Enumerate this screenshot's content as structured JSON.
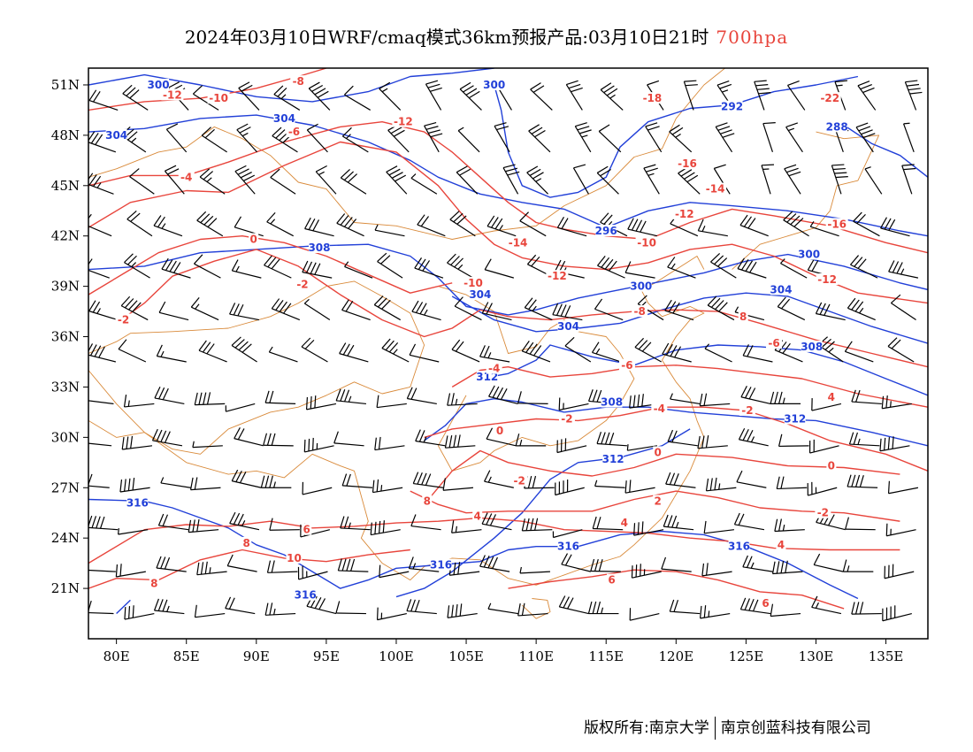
{
  "header": {
    "title": "2024年03月10日WRF/cmaq模式36km预报产品:03月10日21时",
    "level": "700hpa"
  },
  "colors": {
    "height_contour": "#2240d8",
    "temperature_contour": "#e8453c",
    "borders": "#d98a3a",
    "wind_barb": "#000000"
  },
  "axes": {
    "lon_range": [
      78,
      138
    ],
    "lat_range": [
      18,
      52
    ],
    "x_ticks": [
      "80E",
      "85E",
      "90E",
      "95E",
      "100E",
      "105E",
      "110E",
      "115E",
      "120E",
      "125E",
      "130E",
      "135E"
    ],
    "y_ticks": [
      "21N",
      "24N",
      "27N",
      "30N",
      "33N",
      "36N",
      "39N",
      "42N",
      "45N",
      "48N",
      "51N"
    ]
  },
  "height_labels": [
    {
      "text": "300",
      "lon": 83,
      "lat": 51
    },
    {
      "text": "304",
      "lon": 80,
      "lat": 48
    },
    {
      "text": "304",
      "lon": 92,
      "lat": 49
    },
    {
      "text": "300",
      "lon": 107,
      "lat": 51
    },
    {
      "text": "292",
      "lon": 124,
      "lat": 49.7
    },
    {
      "text": "288",
      "lon": 131.5,
      "lat": 48.5
    },
    {
      "text": "296",
      "lon": 115,
      "lat": 42.3
    },
    {
      "text": "308",
      "lon": 94.5,
      "lat": 41.3
    },
    {
      "text": "300",
      "lon": 129.5,
      "lat": 40.9
    },
    {
      "text": "300",
      "lon": 117.5,
      "lat": 39
    },
    {
      "text": "304",
      "lon": 127.5,
      "lat": 38.8
    },
    {
      "text": "304",
      "lon": 106,
      "lat": 38.5
    },
    {
      "text": "304",
      "lon": 112.3,
      "lat": 36.6
    },
    {
      "text": "308",
      "lon": 129.7,
      "lat": 35.4
    },
    {
      "text": "312",
      "lon": 106.5,
      "lat": 33.6
    },
    {
      "text": "308",
      "lon": 115.4,
      "lat": 32.1
    },
    {
      "text": "312",
      "lon": 128.5,
      "lat": 31.1
    },
    {
      "text": "312",
      "lon": 115.5,
      "lat": 28.7
    },
    {
      "text": "316",
      "lon": 81.5,
      "lat": 26.1
    },
    {
      "text": "316",
      "lon": 112.3,
      "lat": 23.5
    },
    {
      "text": "316",
      "lon": 124.5,
      "lat": 23.5
    },
    {
      "text": "316",
      "lon": 103.2,
      "lat": 22.4
    },
    {
      "text": "316",
      "lon": 93.5,
      "lat": 20.6
    }
  ],
  "temperature_labels": [
    {
      "text": "-8",
      "lon": 93,
      "lat": 51.2
    },
    {
      "text": "-12",
      "lon": 84,
      "lat": 50.4
    },
    {
      "text": "-10",
      "lon": 87.3,
      "lat": 50.2
    },
    {
      "text": "-12",
      "lon": 100.5,
      "lat": 48.8
    },
    {
      "text": "-6",
      "lon": 92.7,
      "lat": 48.2
    },
    {
      "text": "-18",
      "lon": 118.3,
      "lat": 50.2
    },
    {
      "text": "-22",
      "lon": 131,
      "lat": 50.2
    },
    {
      "text": "-16",
      "lon": 120.8,
      "lat": 46.3
    },
    {
      "text": "-14",
      "lon": 122.8,
      "lat": 44.8
    },
    {
      "text": "-12",
      "lon": 120.6,
      "lat": 43.3
    },
    {
      "text": "-16",
      "lon": 131.5,
      "lat": 42.7
    },
    {
      "text": "-4",
      "lon": 85,
      "lat": 45.5
    },
    {
      "text": "0",
      "lon": 89.8,
      "lat": 41.8
    },
    {
      "text": "-14",
      "lon": 108.7,
      "lat": 41.6
    },
    {
      "text": "-10",
      "lon": 117.9,
      "lat": 41.6
    },
    {
      "text": "-12",
      "lon": 111.5,
      "lat": 39.6
    },
    {
      "text": "-12",
      "lon": 130.8,
      "lat": 39.4
    },
    {
      "text": "-2",
      "lon": 93.3,
      "lat": 39.1
    },
    {
      "text": "-10",
      "lon": 105.5,
      "lat": 39.2
    },
    {
      "text": "-8",
      "lon": 117.4,
      "lat": 37.5
    },
    {
      "text": "8",
      "lon": 124.8,
      "lat": 37.2
    },
    {
      "text": "-2",
      "lon": 80.5,
      "lat": 37
    },
    {
      "text": "-6",
      "lon": 127,
      "lat": 35.6
    },
    {
      "text": "-4",
      "lon": 107,
      "lat": 34.1
    },
    {
      "text": "-6",
      "lon": 116.5,
      "lat": 34.3
    },
    {
      "text": "4",
      "lon": 131.1,
      "lat": 32.4
    },
    {
      "text": "-4",
      "lon": 118.8,
      "lat": 31.7
    },
    {
      "text": "-2",
      "lon": 125.1,
      "lat": 31.6
    },
    {
      "text": "-2",
      "lon": 112.2,
      "lat": 31.1
    },
    {
      "text": "0",
      "lon": 107.4,
      "lat": 30.4
    },
    {
      "text": "0",
      "lon": 118.7,
      "lat": 29.1
    },
    {
      "text": "0",
      "lon": 131.1,
      "lat": 28.3
    },
    {
      "text": "-2",
      "lon": 108.8,
      "lat": 27.4
    },
    {
      "text": "2",
      "lon": 118.7,
      "lat": 26.2
    },
    {
      "text": "-2",
      "lon": 130.5,
      "lat": 25.5
    },
    {
      "text": "8",
      "lon": 102.2,
      "lat": 26.2
    },
    {
      "text": "4",
      "lon": 105.8,
      "lat": 25.3
    },
    {
      "text": "4",
      "lon": 116.3,
      "lat": 24.9
    },
    {
      "text": "6",
      "lon": 93.6,
      "lat": 24.5
    },
    {
      "text": "8",
      "lon": 89.3,
      "lat": 23.7
    },
    {
      "text": "4",
      "lon": 127.5,
      "lat": 23.6
    },
    {
      "text": "10",
      "lon": 92.7,
      "lat": 22.8
    },
    {
      "text": "6",
      "lon": 115.4,
      "lat": 21.5
    },
    {
      "text": "8",
      "lon": 82.7,
      "lat": 21.3
    },
    {
      "text": "6",
      "lon": 126.4,
      "lat": 20.1
    }
  ],
  "footer": {
    "copyright_left": "版权所有:南京大学",
    "copyright_right": "南京创蓝科技有限公司"
  }
}
